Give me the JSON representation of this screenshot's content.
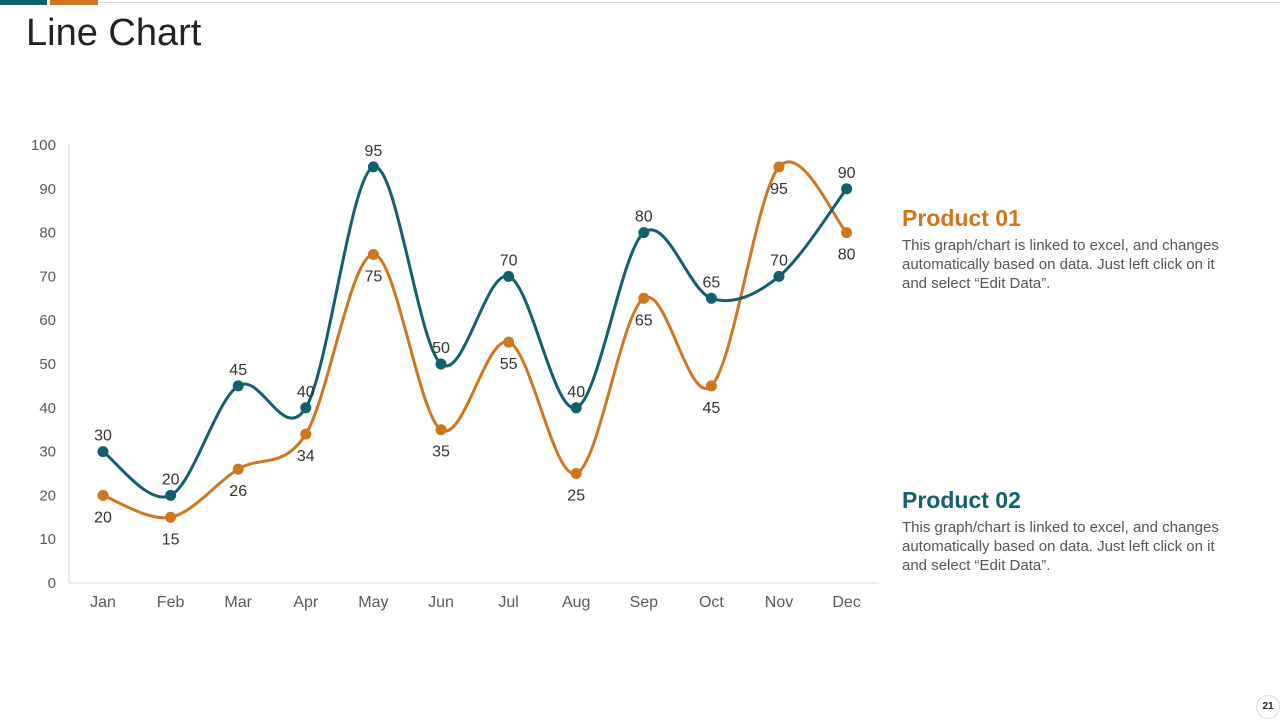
{
  "page": {
    "title": "Line Chart",
    "page_number": "21"
  },
  "colors": {
    "teal": "#145f6e",
    "orange": "#d1761f",
    "axis": "#d9d9d9",
    "tick": "#595959"
  },
  "legend": [
    {
      "title": "Product 01",
      "description": "This graph/chart is linked to excel, and changes automatically based on data. Just left click on it and select “Edit Data”.",
      "color": "#d1761f"
    },
    {
      "title": "Product 02",
      "description": "This graph/chart is linked to excel, and changes automatically based on data. Just left click on it and select “Edit Data”.",
      "color": "#145f6e"
    }
  ],
  "chart_data": {
    "type": "line",
    "title": "",
    "xlabel": "",
    "ylabel": "",
    "categories": [
      "Jan",
      "Feb",
      "Mar",
      "Apr",
      "May",
      "Jun",
      "Jul",
      "Aug",
      "Sep",
      "Oct",
      "Nov",
      "Dec"
    ],
    "ylim": [
      0,
      100
    ],
    "yticks": [
      0,
      10,
      20,
      30,
      40,
      50,
      60,
      70,
      80,
      90,
      100
    ],
    "grid": false,
    "smooth": true,
    "series": [
      {
        "name": "Product 01",
        "color": "#d1761f",
        "values": [
          20,
          15,
          26,
          34,
          75,
          35,
          55,
          25,
          65,
          45,
          95,
          80
        ],
        "label_positions": [
          "below",
          "below",
          "below",
          "below",
          "below",
          "below",
          "below",
          "below",
          "below",
          "below",
          "below",
          "below"
        ]
      },
      {
        "name": "Product 02",
        "color": "#145f6e",
        "values": [
          30,
          20,
          45,
          40,
          95,
          50,
          70,
          40,
          80,
          65,
          70,
          90
        ],
        "label_positions": [
          "above",
          "above",
          "above",
          "above",
          "above",
          "above",
          "above",
          "above",
          "above",
          "above",
          "above",
          "above"
        ]
      }
    ]
  }
}
